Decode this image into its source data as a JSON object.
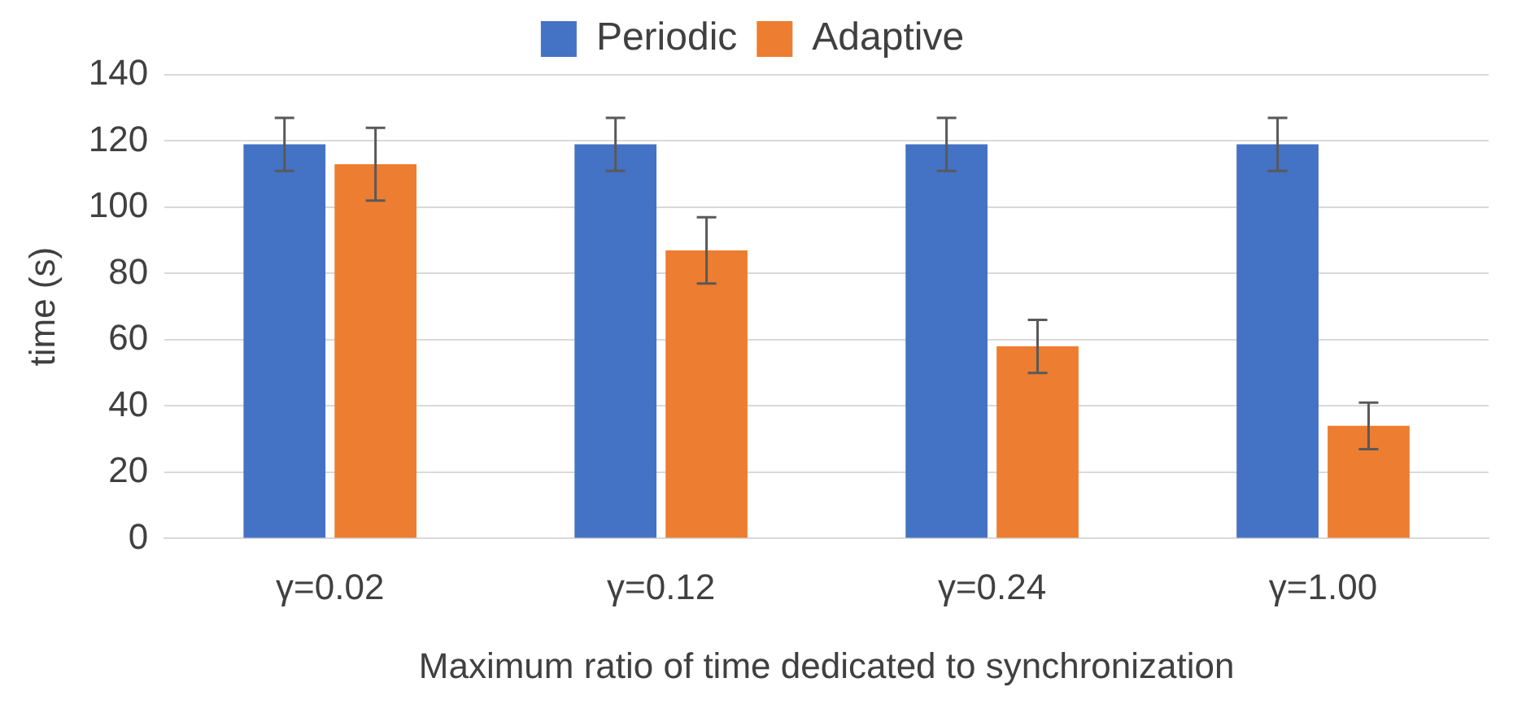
{
  "chart_data": {
    "type": "bar",
    "xlabel": "Maximum ratio of time dedicated to synchronization",
    "ylabel": "time (s)",
    "categories": [
      "γ=0.02",
      "γ=0.12",
      "γ=0.24",
      "γ=1.00"
    ],
    "series": [
      {
        "name": "Periodic",
        "color": "#4472c4",
        "values": [
          119,
          119,
          119,
          119
        ],
        "errors": [
          8,
          8,
          8,
          8
        ]
      },
      {
        "name": "Adaptive",
        "color": "#ed7d31",
        "values": [
          113,
          87,
          58,
          34
        ],
        "errors": [
          11,
          10,
          8,
          7
        ]
      }
    ],
    "ylim": [
      0,
      140
    ],
    "yticks": [
      0,
      20,
      40,
      60,
      80,
      100,
      120,
      140
    ],
    "grid": "y",
    "legend": "top"
  }
}
